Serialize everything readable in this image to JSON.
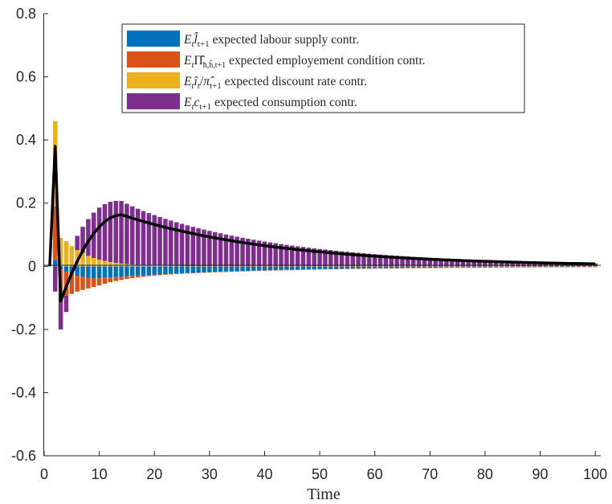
{
  "chart_data": {
    "type": "bar",
    "stacked": true,
    "title": "",
    "xlabel": "Time",
    "ylabel": "",
    "xlim": [
      0,
      101
    ],
    "ylim": [
      -0.6,
      0.8
    ],
    "xticks": [
      0,
      10,
      20,
      30,
      40,
      50,
      60,
      70,
      80,
      90,
      100
    ],
    "yticks": [
      -0.6,
      -0.4,
      -0.2,
      0,
      0.2,
      0.4,
      0.6,
      0.8
    ],
    "ytick_labels": [
      "-0.6",
      "-0.4",
      "-0.2",
      "0",
      "0.2",
      "0.4",
      "0.6",
      "0.8"
    ],
    "grid": false,
    "legend_position": "top",
    "series": [
      {
        "name": "expected labour supply contr.",
        "math": {
          "base": "E",
          "sub": "t",
          "var": "l̂",
          "varsub": "t+1"
        },
        "color": "#0072BD",
        "values": {
          "t1": 0.0,
          "t2": 0.02,
          "t3": -0.01,
          "peak_t": 10,
          "peak_value": -0.038,
          "decay": 0.965
        }
      },
      {
        "name": "expected employement condition contr.",
        "math": {
          "base": "E",
          "sub": "t",
          "var": "Π̂",
          "varsub": "ħ,ĥ,t+1"
        },
        "color": "#D95319",
        "values": {
          "t1": 0.0,
          "t2": 0.17,
          "t3": -0.08,
          "start_value": -0.075,
          "decay_per_period": 0.82
        }
      },
      {
        "name": "expected discount rate contr.",
        "math": {
          "base": "E",
          "sub": "t",
          "var": "î",
          "varsub": "t",
          "div": "π̂",
          "divsub": "t+1"
        },
        "color": "#EDB120",
        "values": {
          "t1": 0.0,
          "t2": 0.27,
          "t3": 0.09,
          "start_value": 0.08,
          "decay_per_period": 0.8
        }
      },
      {
        "name": "expected consumption contr.",
        "math": {
          "base": "E",
          "sub": "t",
          "var": "c",
          "varsub": "t+1"
        },
        "color": "#7E2F8E",
        "values": {
          "t1": 0.0,
          "t2": -0.08,
          "t3": -0.11,
          "peak_t": 14,
          "peak_value": 0.198,
          "decay": 0.965
        }
      }
    ],
    "line": {
      "name": "total",
      "color": "#000000",
      "points": [
        [
          1,
          0.0
        ],
        [
          2,
          0.33
        ],
        [
          3,
          -0.03
        ],
        [
          4,
          -0.03
        ],
        [
          14.5,
          0.195
        ],
        [
          100,
          0.012
        ]
      ]
    }
  }
}
